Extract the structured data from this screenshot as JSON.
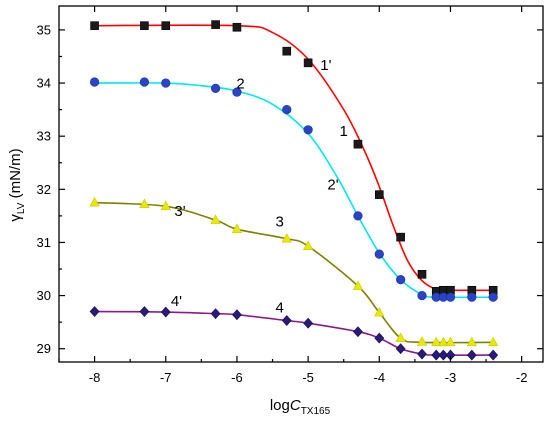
{
  "chart_data": {
    "type": "scatter",
    "xlabel_prefix": "log",
    "xlabel_main": "C",
    "xlabel_sub": "TX165",
    "ylabel_main": "γ",
    "ylabel_sub": "LV",
    "ylabel_suffix": " (mN/m)",
    "xlim": [
      -8.5,
      -1.7
    ],
    "ylim": [
      28.75,
      35.45
    ],
    "xticks": [
      -8,
      -7,
      -6,
      -5,
      -4,
      -3,
      -2
    ],
    "yticks": [
      29,
      30,
      31,
      32,
      33,
      34,
      35
    ],
    "grid": false,
    "series": [
      {
        "name": "1",
        "marker": "square",
        "marker_color": "#1a1a1a",
        "curve_color": "#ff0000",
        "points": [
          [
            -8,
            35.08
          ],
          [
            -7.3,
            35.08
          ],
          [
            -7,
            35.08
          ],
          [
            -6.3,
            35.1
          ],
          [
            -6,
            35.05
          ],
          [
            -5.3,
            34.6
          ],
          [
            -5,
            34.38
          ],
          [
            -4.3,
            32.85
          ],
          [
            -4,
            31.9
          ],
          [
            -3.7,
            31.1
          ],
          [
            -3.4,
            30.4
          ],
          [
            -3.2,
            30.08
          ],
          [
            -3.1,
            30.1
          ],
          [
            -3.0,
            30.1
          ],
          [
            -2.7,
            30.1
          ],
          [
            -2.4,
            30.1
          ]
        ],
        "fit": [
          [
            -8,
            35.08
          ],
          [
            -6,
            35.08
          ],
          [
            -5.5,
            34.95
          ],
          [
            -5,
            34.45
          ],
          [
            -4.5,
            33.5
          ],
          [
            -4.2,
            32.7
          ],
          [
            -4,
            32.05
          ],
          [
            -3.8,
            31.3
          ],
          [
            -3.6,
            30.65
          ],
          [
            -3.4,
            30.28
          ],
          [
            -3.2,
            30.12
          ],
          [
            -3,
            30.1
          ],
          [
            -2.4,
            30.1
          ]
        ]
      },
      {
        "name": "2",
        "marker": "circle",
        "marker_color": "#2a44c8",
        "curve_color": "#00e5ee",
        "points": [
          [
            -8,
            34.02
          ],
          [
            -7.3,
            34.02
          ],
          [
            -7,
            34.0
          ],
          [
            -6.3,
            33.9
          ],
          [
            -6,
            33.83
          ],
          [
            -5.3,
            33.5
          ],
          [
            -5,
            33.12
          ],
          [
            -4.3,
            31.5
          ],
          [
            -4,
            30.78
          ],
          [
            -3.7,
            30.3
          ],
          [
            -3.4,
            30.0
          ],
          [
            -3.2,
            29.97
          ],
          [
            -3.1,
            29.97
          ],
          [
            -3.0,
            29.97
          ],
          [
            -2.7,
            29.97
          ],
          [
            -2.4,
            29.97
          ]
        ],
        "fit": [
          [
            -8,
            34.0
          ],
          [
            -7,
            34.0
          ],
          [
            -6.5,
            33.95
          ],
          [
            -6,
            33.85
          ],
          [
            -5.5,
            33.6
          ],
          [
            -5,
            33.05
          ],
          [
            -4.6,
            32.25
          ],
          [
            -4.3,
            31.5
          ],
          [
            -4,
            30.8
          ],
          [
            -3.7,
            30.3
          ],
          [
            -3.4,
            30.02
          ],
          [
            -3.2,
            29.97
          ],
          [
            -2.4,
            29.97
          ]
        ]
      },
      {
        "name": "3",
        "marker": "triangle",
        "marker_color": "#e8e800",
        "curve_color": "#808000",
        "points": [
          [
            -8,
            31.75
          ],
          [
            -7.3,
            31.72
          ],
          [
            -7,
            31.68
          ],
          [
            -6.3,
            31.42
          ],
          [
            -6,
            31.25
          ],
          [
            -5.3,
            31.07
          ],
          [
            -5,
            30.93
          ],
          [
            -4.3,
            30.18
          ],
          [
            -4,
            29.68
          ],
          [
            -3.7,
            29.2
          ],
          [
            -3.4,
            29.13
          ],
          [
            -3.2,
            29.12
          ],
          [
            -3.1,
            29.12
          ],
          [
            -3.0,
            29.12
          ],
          [
            -2.7,
            29.12
          ],
          [
            -2.4,
            29.12
          ]
        ],
        "fit": [
          [
            -8,
            31.75
          ],
          [
            -7,
            31.68
          ],
          [
            -6.3,
            31.42
          ],
          [
            -6,
            31.25
          ],
          [
            -5.3,
            31.07
          ],
          [
            -5,
            30.93
          ],
          [
            -4.3,
            30.18
          ],
          [
            -4,
            29.68
          ],
          [
            -3.7,
            29.2
          ],
          [
            -3.4,
            29.12
          ],
          [
            -2.4,
            29.12
          ]
        ]
      },
      {
        "name": "4",
        "marker": "diamond",
        "marker_color": "#2a1a7a",
        "curve_color": "#8a1a8a",
        "points": [
          [
            -8,
            29.7
          ],
          [
            -7.3,
            29.7
          ],
          [
            -7,
            29.69
          ],
          [
            -6.3,
            29.66
          ],
          [
            -6,
            29.64
          ],
          [
            -5.3,
            29.53
          ],
          [
            -5,
            29.48
          ],
          [
            -4.3,
            29.32
          ],
          [
            -4,
            29.2
          ],
          [
            -3.7,
            29.0
          ],
          [
            -3.4,
            28.9
          ],
          [
            -3.2,
            28.88
          ],
          [
            -3.1,
            28.88
          ],
          [
            -3.0,
            28.88
          ],
          [
            -2.7,
            28.88
          ],
          [
            -2.4,
            28.88
          ]
        ],
        "fit": [
          [
            -8,
            29.7
          ],
          [
            -7,
            29.69
          ],
          [
            -6.3,
            29.66
          ],
          [
            -6,
            29.64
          ],
          [
            -5.3,
            29.53
          ],
          [
            -5,
            29.48
          ],
          [
            -4.3,
            29.32
          ],
          [
            -4,
            29.2
          ],
          [
            -3.7,
            29.0
          ],
          [
            -3.4,
            28.9
          ],
          [
            -3.2,
            28.88
          ],
          [
            -2.4,
            28.88
          ]
        ]
      }
    ],
    "annotations": [
      {
        "text": "1'",
        "x": -4.75,
        "y": 34.25
      },
      {
        "text": "1",
        "x": -4.5,
        "y": 33.0
      },
      {
        "text": "2",
        "x": -5.95,
        "y": 33.9
      },
      {
        "text": "2'",
        "x": -4.65,
        "y": 32.0
      },
      {
        "text": "3'",
        "x": -6.8,
        "y": 31.5
      },
      {
        "text": "3",
        "x": -5.4,
        "y": 31.3
      },
      {
        "text": "4'",
        "x": -6.85,
        "y": 29.8
      },
      {
        "text": "4",
        "x": -5.4,
        "y": 29.68
      }
    ]
  }
}
